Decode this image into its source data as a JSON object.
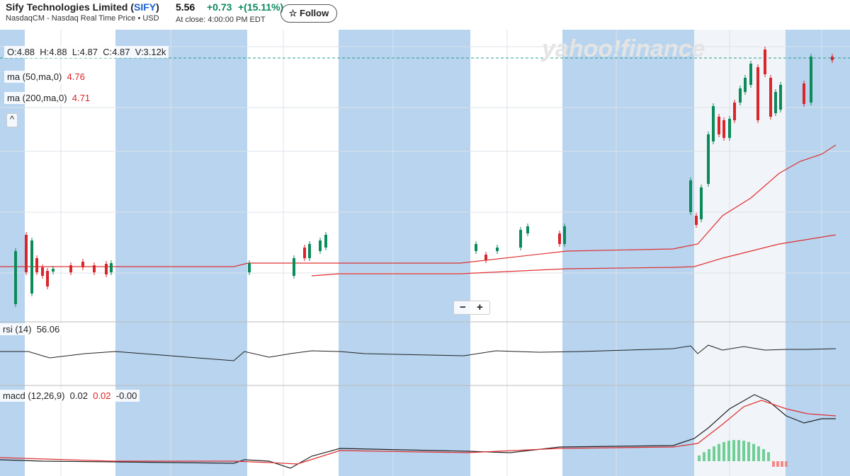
{
  "header": {
    "company": "Sify Technologies Limited (",
    "ticker": "SIFY",
    "company_end": ")",
    "exchange": "NasdaqCM - Nasdaq Real Time Price • USD",
    "price": "5.56",
    "change": "+0.73",
    "change_pct": "+(15.11%)",
    "close_time": "At close: 4:00:00 PM EDT",
    "follow": "Follow"
  },
  "legend": {
    "open": "O:4.88",
    "high": "H:4.88",
    "low": "L:4.87",
    "close": "C:4.87",
    "volume": "V:3.12k",
    "ma50_label": "ma (50,ma,0)",
    "ma50_value": "4.76",
    "ma200_label": "ma (200,ma,0)",
    "ma200_value": "4.71",
    "collapse": "^"
  },
  "watermark": "yahoo!finance",
  "zoom": {
    "out": "−",
    "in": "+"
  },
  "rsi": {
    "label": "rsi (14)",
    "value": "56.06"
  },
  "macd": {
    "label": "macd (12,26,9)",
    "macd": "0.02",
    "signal": "0.02",
    "hist": "-0.00"
  }
}
